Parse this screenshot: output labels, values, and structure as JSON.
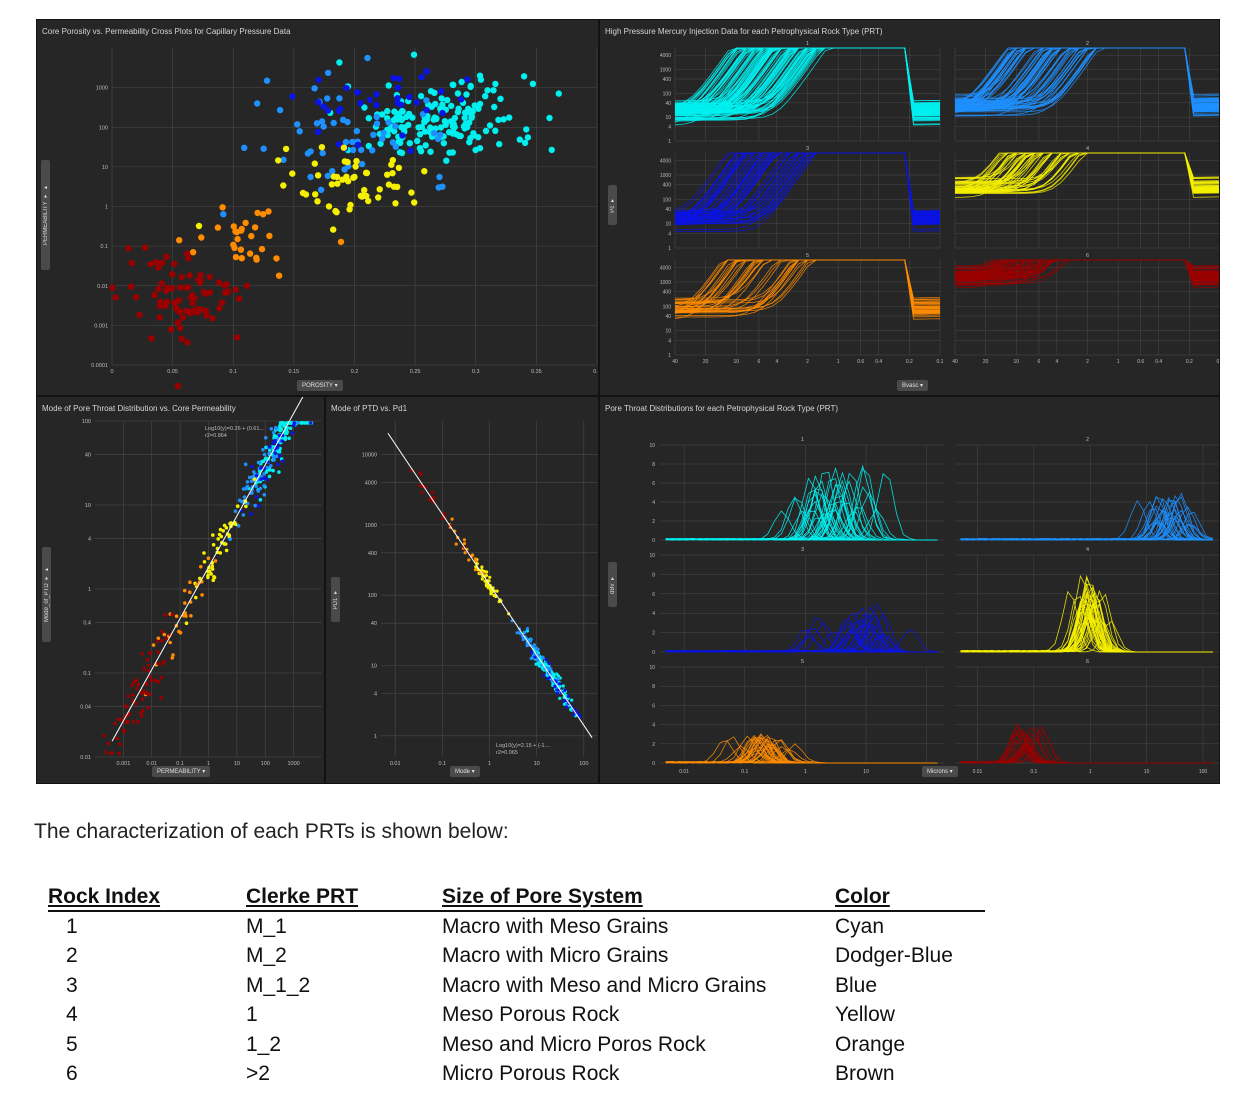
{
  "dashboard": {
    "panels": {
      "core_crossplot": {
        "title": "Core Porosity vs. Permeability Cross Plots for Capillary Pressure Data",
        "xlabel": "POROSITY",
        "ylabel": "PERMEABILITY"
      },
      "hpmi": {
        "title": "High Pressure Mercury Injection Data for each Petrophysical Rock Type (PRT)",
        "xlabel": "Bvasc",
        "ylabel": "Pc"
      },
      "mode_ptd_perm": {
        "title": "Mode of Pore Throat Distribution vs. Core Permeability",
        "xlabel": "PERMEABILITY",
        "ylabel": "Mode_of_PTD",
        "fit_line1": "Log10(y)=0.26 + (0.61...",
        "fit_line2": "r2=0.864"
      },
      "mode_ptd_pd1": {
        "title": "Mode of PTD vs. Pd1",
        "xlabel": "Mode",
        "ylabel": "PD1",
        "fit_line1": "Log10(y)=2.15 + (-1....",
        "fit_line2": "r2=0.965"
      },
      "ptd": {
        "title": "Pore Throat Distributions for each Petrophysical Rock Type (PRT)",
        "xlabel": "Microns",
        "ylabel": "dBv"
      }
    },
    "facet_labels": [
      "1",
      "2",
      "3",
      "4",
      "5",
      "6"
    ],
    "colors": {
      "1": "#00f0f0",
      "2": "#1e90ff",
      "3": "#0a14e6",
      "4": "#f5f000",
      "5": "#ff8c00",
      "6": "#9b0000"
    }
  },
  "chart_data": [
    {
      "type": "scatter",
      "title": "Core Porosity vs. Permeability Cross Plots for Capillary Pressure Data",
      "xlabel": "POROSITY",
      "ylabel": "PERMEABILITY",
      "xlim": [
        0,
        0.4
      ],
      "ylim": [
        0.0001,
        10000
      ],
      "yscale": "log",
      "grid": true,
      "x_ticks": [
        "0",
        "0.05",
        "0.1",
        "0.15",
        "0.2",
        "0.25",
        "0.3",
        "0.35",
        "0.4"
      ],
      "y_ticks": [
        "0.0001",
        "0.001",
        "0.01",
        "0.1",
        "1",
        "10",
        "100",
        "1000"
      ],
      "series": [
        {
          "prt": "1",
          "clusters": [
            [
              0.27,
              150,
              0.04,
              0.5,
              170
            ]
          ]
        },
        {
          "prt": "2",
          "clusters": [
            [
              0.2,
              80,
              0.04,
              0.6,
              55
            ]
          ]
        },
        {
          "prt": "3",
          "clusters": [
            [
              0.22,
              400,
              0.04,
              0.5,
              35
            ]
          ]
        },
        {
          "prt": "4",
          "clusters": [
            [
              0.2,
              4,
              0.03,
              0.45,
              55
            ]
          ]
        },
        {
          "prt": "5",
          "clusters": [
            [
              0.11,
              0.15,
              0.025,
              0.4,
              30
            ]
          ]
        },
        {
          "prt": "6",
          "clusters": [
            [
              0.06,
              0.005,
              0.025,
              0.55,
              85
            ]
          ]
        }
      ]
    },
    {
      "type": "line",
      "title": "High Pressure Mercury Injection Data for each Petrophysical Rock Type (PRT)",
      "xlabel": "Bvasc",
      "ylabel": "Pc",
      "x_ticks": [
        "40",
        "20",
        "10",
        "6",
        "4",
        "2",
        "1",
        "0.6",
        "0.4",
        "0.2",
        "0.1"
      ],
      "y_ticks": [
        "1",
        "4",
        "10",
        "40",
        "100",
        "400",
        "1000",
        "4000"
      ],
      "facets": [
        {
          "prt": "1",
          "curves": 120,
          "plateau": 20
        },
        {
          "prt": "2",
          "curves": 80,
          "plateau": 30
        },
        {
          "prt": "3",
          "curves": 60,
          "plateau": 15
        },
        {
          "prt": "4",
          "curves": 60,
          "plateau": 300
        },
        {
          "prt": "5",
          "curves": 40,
          "plateau": 80
        },
        {
          "prt": "6",
          "curves": 70,
          "plateau": 1500
        }
      ]
    },
    {
      "type": "scatter",
      "title": "Mode of Pore Throat Distribution vs. Core Permeability",
      "xlabel": "PERMEABILITY",
      "ylabel": "Mode_of_PTD",
      "xscale": "log",
      "yscale": "log",
      "xlim": [
        0.0001,
        10000
      ],
      "ylim": [
        0.01,
        100
      ],
      "grid": true,
      "x_ticks": [
        "0.001",
        "0.01",
        "0.1",
        "1",
        "10",
        "100",
        "1000"
      ],
      "y_ticks": [
        "0.01",
        "0.04",
        "0.1",
        "0.4",
        "1",
        "4",
        "10",
        "40",
        "100"
      ],
      "fit": {
        "intercept": 0.26,
        "slope": 0.61,
        "r2": 0.864
      },
      "series": [
        {
          "prt": "1",
          "clusters": [
            [
              300,
              0.3,
              0.5,
              0.12,
              140
            ]
          ]
        },
        {
          "prt": "2",
          "clusters": [
            [
              60,
              0.6,
              0.5,
              0.15,
              60
            ]
          ]
        },
        {
          "prt": "3",
          "clusters": [
            [
              200,
              0.8,
              0.5,
              0.15,
              30
            ]
          ]
        },
        {
          "prt": "4",
          "clusters": [
            [
              2,
              1.0,
              0.5,
              0.12,
              50
            ]
          ]
        },
        {
          "prt": "5",
          "clusters": [
            [
              0.1,
              1.2,
              0.5,
              0.15,
              30
            ]
          ]
        },
        {
          "prt": "6",
          "clusters": [
            [
              0.003,
              1.8,
              0.55,
              0.2,
              70
            ]
          ]
        }
      ]
    },
    {
      "type": "scatter",
      "title": "Mode of PTD vs. Pd1",
      "xlabel": "Mode",
      "ylabel": "PD1",
      "xscale": "log",
      "yscale": "log",
      "xlim": [
        0.005,
        200
      ],
      "ylim": [
        0.5,
        30000
      ],
      "grid": true,
      "x_ticks": [
        "0.01",
        "0.1",
        "1",
        "10",
        "100"
      ],
      "y_ticks": [
        "1",
        "4",
        "10",
        "40",
        "100",
        "400",
        "1000",
        "4000",
        "10000"
      ],
      "fit": {
        "intercept": 2.15,
        "slope": -1,
        "r2": 0.965
      },
      "series": [
        {
          "prt": "1",
          "clusters": [
            [
              20,
              0.4,
              0.25,
              0.06,
              140
            ]
          ]
        },
        {
          "prt": "2",
          "clusters": [
            [
              10,
              0.5,
              0.3,
              0.06,
              60
            ]
          ]
        },
        {
          "prt": "3",
          "clusters": [
            [
              30,
              0.4,
              0.2,
              0.06,
              30
            ]
          ]
        },
        {
          "prt": "4",
          "clusters": [
            [
              1,
              0.3,
              0.15,
              0.06,
              50
            ]
          ]
        },
        {
          "prt": "5",
          "clusters": [
            [
              0.3,
              0.3,
              0.2,
              0.06,
              20
            ]
          ]
        },
        {
          "prt": "6",
          "clusters": [
            [
              0.05,
              0.3,
              0.3,
              0.06,
              20
            ]
          ]
        }
      ]
    },
    {
      "type": "line",
      "title": "Pore Throat Distributions for each Petrophysical Rock Type (PRT)",
      "xlabel": "Microns",
      "ylabel": "dBv",
      "x_ticks": [
        "0.01",
        "0.1",
        "1",
        "10",
        "100"
      ],
      "y_ticks": [
        "0",
        "2",
        "4",
        "6",
        "8",
        "10"
      ],
      "facets": [
        {
          "prt": "1",
          "curves": 40,
          "peak_micron": 3,
          "spread_log": 0.4,
          "height": 8
        },
        {
          "prt": "2",
          "curves": 30,
          "peak_micron": 25,
          "spread_log": 0.3,
          "height": 5
        },
        {
          "prt": "3",
          "curves": 30,
          "peak_micron": 5,
          "spread_log": 0.4,
          "height": 5
        },
        {
          "prt": "4",
          "curves": 40,
          "peak_micron": 1,
          "spread_log": 0.12,
          "height": 8
        },
        {
          "prt": "5",
          "curves": 30,
          "peak_micron": 0.2,
          "spread_log": 0.3,
          "height": 3
        },
        {
          "prt": "6",
          "curves": 25,
          "peak_micron": 0.07,
          "spread_log": 0.15,
          "height": 4
        }
      ]
    }
  ],
  "intro": "The characterization of each PRTs is shown below:",
  "table": {
    "headers": [
      "Rock Index",
      "Clerke PRT",
      "Size of Pore System",
      "Color"
    ],
    "rows": [
      [
        "1",
        "M_1",
        "Macro with Meso Grains",
        "Cyan"
      ],
      [
        "2",
        "M_2",
        "Macro with Micro Grains",
        "Dodger-Blue"
      ],
      [
        "3",
        "M_1_2",
        "Macro with Meso and Micro Grains",
        "Blue"
      ],
      [
        "4",
        "1",
        "Meso Porous Rock",
        "Yellow"
      ],
      [
        "5",
        "1_2",
        "Meso and Micro Poros Rock",
        "Orange"
      ],
      [
        "6",
        ">2",
        "Micro Porous Rock",
        "Brown"
      ]
    ]
  }
}
